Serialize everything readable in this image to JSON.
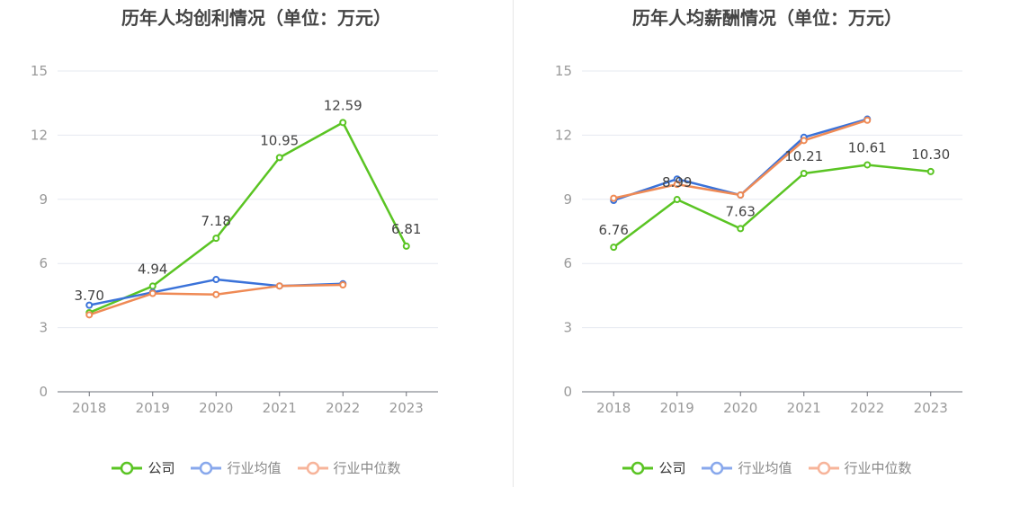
{
  "chart_data": [
    {
      "type": "line",
      "title": "历年人均创利情况（单位：万元）",
      "categories": [
        "2018",
        "2019",
        "2020",
        "2021",
        "2022",
        "2023"
      ],
      "ylim": [
        0,
        15
      ],
      "yticks": [
        0,
        3,
        6,
        9,
        12,
        15
      ],
      "series": [
        {
          "name": "公司",
          "color": "#5ac423",
          "values": [
            3.7,
            4.94,
            7.18,
            10.95,
            12.59,
            6.81
          ],
          "labels": [
            "3.70",
            "4.94",
            "7.18",
            "10.95",
            "12.59",
            "6.81"
          ]
        },
        {
          "name": "行业均值",
          "color": "#3a72d9",
          "values": [
            4.05,
            4.65,
            5.25,
            4.95,
            5.05,
            null
          ]
        },
        {
          "name": "行业中位数",
          "color": "#ef8a55",
          "values": [
            3.6,
            4.6,
            4.55,
            4.95,
            5.0,
            null
          ]
        }
      ]
    },
    {
      "type": "line",
      "title": "历年人均薪酬情况（单位：万元）",
      "categories": [
        "2018",
        "2019",
        "2020",
        "2021",
        "2022",
        "2023"
      ],
      "ylim": [
        0,
        15
      ],
      "yticks": [
        0,
        3,
        6,
        9,
        12,
        15
      ],
      "series": [
        {
          "name": "公司",
          "color": "#5ac423",
          "values": [
            6.76,
            8.99,
            7.63,
            10.21,
            10.61,
            10.3
          ],
          "labels": [
            "6.76",
            "8.99",
            "7.63",
            "10.21",
            "10.61",
            "10.30"
          ]
        },
        {
          "name": "行业均值",
          "color": "#3a72d9",
          "values": [
            8.95,
            9.95,
            9.2,
            11.9,
            12.75,
            null
          ]
        },
        {
          "name": "行业中位数",
          "color": "#ef8a55",
          "values": [
            9.05,
            9.7,
            9.2,
            11.75,
            12.7,
            null
          ]
        }
      ]
    }
  ],
  "legend": {
    "company": "公司",
    "industry_avg": "行业均值",
    "industry_median": "行业中位数",
    "colors": {
      "company": "#5ac423",
      "industry_avg": "#88a8ec",
      "industry_median": "#f7b49a"
    }
  }
}
